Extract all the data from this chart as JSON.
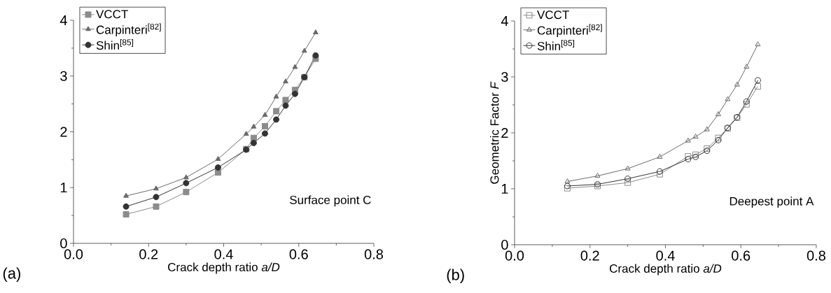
{
  "chart_data": [
    {
      "type": "line",
      "xlabel": "Crack depth ratio *a/D*",
      "legend": "top left",
      "annotations": [
        "Surface point C",
        "(a)"
      ],
      "xlim": [
        0,
        0.8
      ],
      "xticks": [
        {
          "value": 0,
          "label": "0.0"
        },
        0.2,
        0.4,
        0.6,
        0.8
      ],
      "ylim": [
        0,
        4
      ],
      "yticks": [
        0,
        1,
        2,
        3,
        4
      ],
      "x": [
        0.14,
        0.22,
        0.3,
        0.385,
        0.46,
        0.48,
        0.51,
        0.54,
        0.565,
        0.59,
        0.615,
        0.645
      ],
      "series": [
        {
          "name": "VCCT",
          "color": "#8c8c8c",
          "marker": "square",
          "values": [
            0.52,
            0.66,
            0.92,
            1.27,
            1.69,
            1.89,
            2.1,
            2.37,
            2.57,
            2.75,
            2.98,
            3.31
          ]
        },
        {
          "name": "Carpinteri$^{[82]}$",
          "color": "#6a6a6a",
          "marker": "triangle",
          "values": [
            0.85,
            0.98,
            1.18,
            1.51,
            1.96,
            2.09,
            2.3,
            2.63,
            2.9,
            3.16,
            3.45,
            3.78
          ]
        },
        {
          "name": "Shin$^{[85]}$",
          "color": "#333333",
          "marker": "circle",
          "values": [
            0.66,
            0.83,
            1.08,
            1.36,
            1.68,
            1.8,
            1.97,
            2.22,
            2.47,
            2.68,
            2.98,
            3.37
          ]
        }
      ]
    },
    {
      "type": "line",
      "xlabel": "Crack depth ratio *a/D*",
      "ylabel": "Geometric Factor *F*",
      "legend": "top left",
      "annotations": [
        "Deepest point A",
        "(b)"
      ],
      "xlim": [
        0,
        0.8
      ],
      "xticks": [
        {
          "value": 0,
          "label": "0.0"
        },
        0.2,
        0.4,
        0.6,
        0.8
      ],
      "ylim": [
        0,
        4
      ],
      "yticks": [
        0,
        1,
        2,
        3,
        4
      ],
      "x": [
        0.14,
        0.22,
        0.3,
        0.385,
        0.46,
        0.48,
        0.51,
        0.54,
        0.565,
        0.59,
        0.615,
        0.645
      ],
      "series": [
        {
          "name": "VCCT",
          "color": "#8c8c8c",
          "marker": "square",
          "values": [
            1.01,
            1.05,
            1.11,
            1.26,
            1.58,
            1.61,
            1.72,
            1.91,
            2.08,
            2.27,
            2.51,
            2.83
          ]
        },
        {
          "name": "Carpinteri$^{[82]}$",
          "color": "#6a6a6a",
          "marker": "triangle",
          "values": [
            1.13,
            1.23,
            1.36,
            1.57,
            1.86,
            1.93,
            2.06,
            2.33,
            2.6,
            2.86,
            3.18,
            3.58
          ]
        },
        {
          "name": "Shin$^{[85]}$",
          "color": "#333333",
          "marker": "circle",
          "values": [
            1.05,
            1.08,
            1.18,
            1.31,
            1.53,
            1.57,
            1.68,
            1.87,
            2.09,
            2.28,
            2.56,
            2.94
          ]
        }
      ]
    }
  ]
}
